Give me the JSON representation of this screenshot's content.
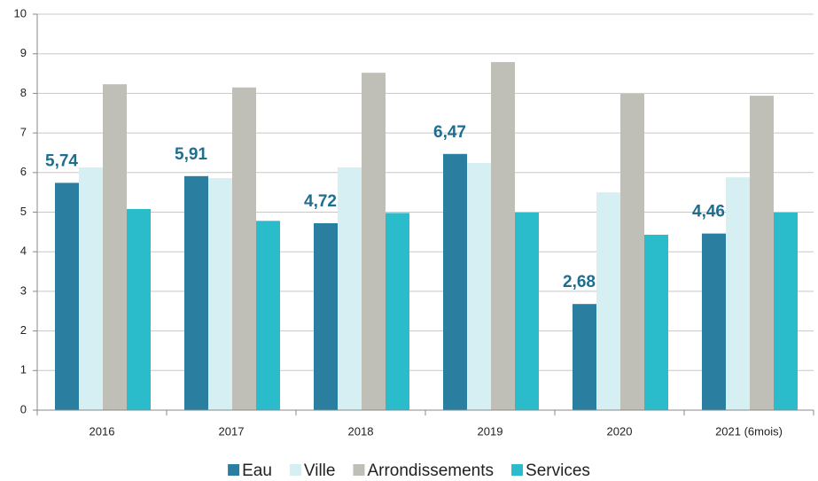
{
  "chart_data": {
    "type": "bar",
    "categories": [
      "2016",
      "2017",
      "2018",
      "2019",
      "2020",
      "2021 (6mois)"
    ],
    "series": [
      {
        "name": "Eau",
        "color": "#2a7fa0",
        "values": [
          5.74,
          5.91,
          4.72,
          6.47,
          2.68,
          4.46
        ],
        "value_labels": [
          "5,74",
          "5,91",
          "4,72",
          "6,47",
          "2,68",
          "4,46"
        ]
      },
      {
        "name": "Ville",
        "color": "#d5eff3",
        "values": [
          6.13,
          5.86,
          6.13,
          6.24,
          5.5,
          5.88
        ]
      },
      {
        "name": "Arrondissements",
        "color": "#bfbfb8",
        "values": [
          8.23,
          8.15,
          8.52,
          8.79,
          7.99,
          7.94
        ]
      },
      {
        "name": "Services",
        "color": "#2bbccc",
        "values": [
          5.08,
          4.78,
          4.98,
          4.99,
          4.43,
          4.99
        ]
      }
    ],
    "ylim": [
      0,
      10
    ],
    "yticks": [
      0,
      1,
      2,
      3,
      4,
      5,
      6,
      7,
      8,
      9,
      10
    ],
    "grid": true,
    "legend": "bottom"
  }
}
